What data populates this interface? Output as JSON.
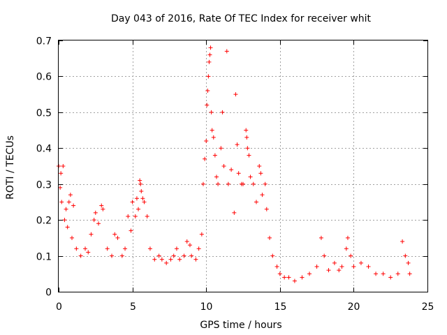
{
  "chart_data": {
    "type": "scatter",
    "title": "Day 043 of 2016, Rate Of TEC Index for receiver whit",
    "xlabel": "GPS time / hours",
    "ylabel": "ROTI / TECUs",
    "xlim": [
      0,
      25
    ],
    "ylim": [
      0,
      0.7
    ],
    "xticks": [
      0,
      5,
      10,
      15,
      20,
      25
    ],
    "yticks": [
      0,
      0.1,
      0.2,
      0.3,
      0.4,
      0.5,
      0.6,
      0.7
    ],
    "xtick_labels": [
      "0",
      "5",
      "10",
      "15",
      "20",
      "25"
    ],
    "ytick_labels": [
      "0",
      "0.1",
      "0.2",
      "0.3",
      "0.4",
      "0.5",
      "0.6",
      "0.7"
    ],
    "grid": true,
    "marker": "+",
    "color": "#ff0000",
    "series": [
      {
        "name": "ROTI",
        "points": [
          [
            0.0,
            0.35
          ],
          [
            0.1,
            0.29
          ],
          [
            0.15,
            0.33
          ],
          [
            0.2,
            0.25
          ],
          [
            0.3,
            0.35
          ],
          [
            0.4,
            0.2
          ],
          [
            0.5,
            0.23
          ],
          [
            0.6,
            0.18
          ],
          [
            0.7,
            0.25
          ],
          [
            0.8,
            0.27
          ],
          [
            0.9,
            0.15
          ],
          [
            1.0,
            0.24
          ],
          [
            1.2,
            0.12
          ],
          [
            1.5,
            0.1
          ],
          [
            1.8,
            0.12
          ],
          [
            2.0,
            0.11
          ],
          [
            2.2,
            0.16
          ],
          [
            2.4,
            0.2
          ],
          [
            2.5,
            0.22
          ],
          [
            2.7,
            0.19
          ],
          [
            2.9,
            0.24
          ],
          [
            3.0,
            0.23
          ],
          [
            3.3,
            0.12
          ],
          [
            3.6,
            0.1
          ],
          [
            3.8,
            0.16
          ],
          [
            4.0,
            0.15
          ],
          [
            4.3,
            0.1
          ],
          [
            4.5,
            0.12
          ],
          [
            4.7,
            0.21
          ],
          [
            4.9,
            0.17
          ],
          [
            5.0,
            0.25
          ],
          [
            5.2,
            0.21
          ],
          [
            5.3,
            0.26
          ],
          [
            5.4,
            0.23
          ],
          [
            5.5,
            0.31
          ],
          [
            5.55,
            0.3
          ],
          [
            5.6,
            0.28
          ],
          [
            5.7,
            0.26
          ],
          [
            5.8,
            0.25
          ],
          [
            6.0,
            0.21
          ],
          [
            6.2,
            0.12
          ],
          [
            6.5,
            0.09
          ],
          [
            6.8,
            0.1
          ],
          [
            7.0,
            0.09
          ],
          [
            7.3,
            0.08
          ],
          [
            7.6,
            0.09
          ],
          [
            7.8,
            0.1
          ],
          [
            8.0,
            0.12
          ],
          [
            8.2,
            0.09
          ],
          [
            8.5,
            0.1
          ],
          [
            8.7,
            0.14
          ],
          [
            8.9,
            0.13
          ],
          [
            9.0,
            0.1
          ],
          [
            9.3,
            0.09
          ],
          [
            9.5,
            0.12
          ],
          [
            9.7,
            0.16
          ],
          [
            9.8,
            0.3
          ],
          [
            9.9,
            0.37
          ],
          [
            10.0,
            0.42
          ],
          [
            10.05,
            0.52
          ],
          [
            10.1,
            0.56
          ],
          [
            10.15,
            0.6
          ],
          [
            10.2,
            0.64
          ],
          [
            10.25,
            0.66
          ],
          [
            10.3,
            0.68
          ],
          [
            10.35,
            0.5
          ],
          [
            10.4,
            0.45
          ],
          [
            10.5,
            0.43
          ],
          [
            10.6,
            0.38
          ],
          [
            10.7,
            0.32
          ],
          [
            10.8,
            0.3
          ],
          [
            11.0,
            0.4
          ],
          [
            11.1,
            0.5
          ],
          [
            11.2,
            0.35
          ],
          [
            11.4,
            0.67
          ],
          [
            11.5,
            0.3
          ],
          [
            11.7,
            0.34
          ],
          [
            11.9,
            0.22
          ],
          [
            12.0,
            0.55
          ],
          [
            12.1,
            0.41
          ],
          [
            12.2,
            0.33
          ],
          [
            12.4,
            0.3
          ],
          [
            12.5,
            0.3
          ],
          [
            12.7,
            0.45
          ],
          [
            12.75,
            0.43
          ],
          [
            12.8,
            0.4
          ],
          [
            12.9,
            0.38
          ],
          [
            13.0,
            0.32
          ],
          [
            13.2,
            0.3
          ],
          [
            13.4,
            0.25
          ],
          [
            13.6,
            0.35
          ],
          [
            13.7,
            0.33
          ],
          [
            13.8,
            0.27
          ],
          [
            14.0,
            0.3
          ],
          [
            14.1,
            0.23
          ],
          [
            14.3,
            0.15
          ],
          [
            14.5,
            0.1
          ],
          [
            14.8,
            0.07
          ],
          [
            15.0,
            0.05
          ],
          [
            15.3,
            0.04
          ],
          [
            15.6,
            0.04
          ],
          [
            16.0,
            0.03
          ],
          [
            16.5,
            0.04
          ],
          [
            17.0,
            0.05
          ],
          [
            17.5,
            0.07
          ],
          [
            17.8,
            0.15
          ],
          [
            18.0,
            0.1
          ],
          [
            18.3,
            0.06
          ],
          [
            18.7,
            0.08
          ],
          [
            19.0,
            0.06
          ],
          [
            19.2,
            0.07
          ],
          [
            19.5,
            0.12
          ],
          [
            19.6,
            0.15
          ],
          [
            19.8,
            0.1
          ],
          [
            20.0,
            0.07
          ],
          [
            20.5,
            0.08
          ],
          [
            21.0,
            0.07
          ],
          [
            21.5,
            0.05
          ],
          [
            22.0,
            0.05
          ],
          [
            22.5,
            0.04
          ],
          [
            23.0,
            0.05
          ],
          [
            23.3,
            0.14
          ],
          [
            23.5,
            0.1
          ],
          [
            23.7,
            0.08
          ],
          [
            23.8,
            0.05
          ]
        ]
      }
    ]
  }
}
